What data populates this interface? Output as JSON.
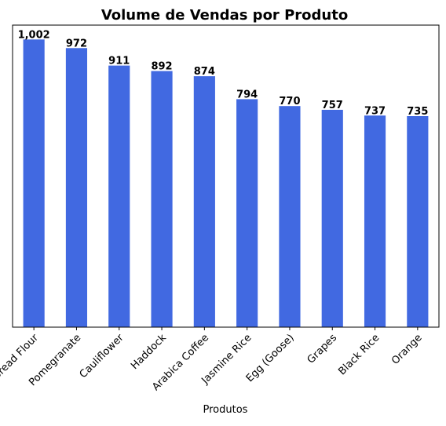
{
  "chart_data": {
    "type": "bar",
    "title": "Volume de Vendas por Produto",
    "xlabel": "Produtos",
    "ylabel": "",
    "categories": [
      "Bread Flour",
      "Pomegranate",
      "Cauliflower",
      "Haddock",
      "Arabica Coffee",
      "Jasmine Rice",
      "Egg (Goose)",
      "Grapes",
      "Black Rice",
      "Orange"
    ],
    "values": [
      1002,
      972,
      911,
      892,
      874,
      794,
      770,
      757,
      737,
      735
    ],
    "data_labels": [
      "1,002",
      "972",
      "911",
      "892",
      "874",
      "794",
      "770",
      "757",
      "737",
      "735"
    ],
    "ylim": [
      0,
      1052
    ],
    "y_ticks_visible": false,
    "grid": false,
    "legend": false,
    "bar_color": "#4169E1",
    "x_tick_rotation_deg": 45
  }
}
